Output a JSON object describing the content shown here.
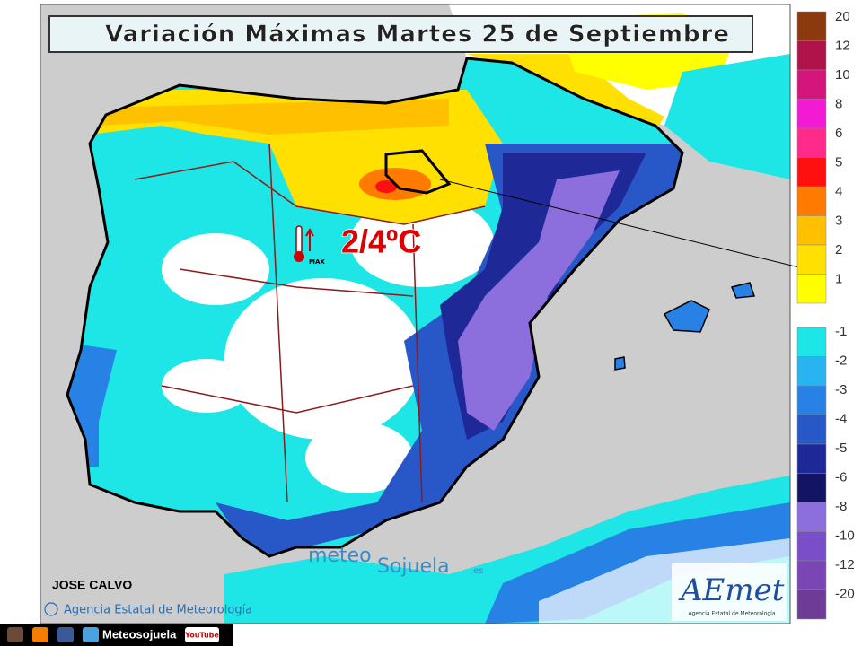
{
  "header": {
    "title": "Variación Máximas Martes 25 de Septiembre"
  },
  "legend": {
    "warm": [
      {
        "label": "20",
        "color": "#8b3a0f"
      },
      {
        "label": "12",
        "color": "#b0124a"
      },
      {
        "label": "10",
        "color": "#d4167c"
      },
      {
        "label": "8",
        "color": "#f21ad2"
      },
      {
        "label": "6",
        "color": "#ff2a8a"
      },
      {
        "label": "5",
        "color": "#ff1010"
      },
      {
        "label": "4",
        "color": "#ff7a00"
      },
      {
        "label": "3",
        "color": "#ffc000"
      },
      {
        "label": "2",
        "color": "#ffe000"
      },
      {
        "label": "1",
        "color": "#ffff00"
      }
    ],
    "cold": [
      {
        "label": "-1",
        "color": "#1ee6e6"
      },
      {
        "label": "-2",
        "color": "#28b4f0"
      },
      {
        "label": "-3",
        "color": "#2882e6"
      },
      {
        "label": "-4",
        "color": "#2858c8"
      },
      {
        "label": "-5",
        "color": "#1e2896"
      },
      {
        "label": "-6",
        "color": "#141464"
      },
      {
        "label": "-8",
        "color": "#8c6edc"
      },
      {
        "label": "-10",
        "color": "#7a4ec8"
      },
      {
        "label": "-12",
        "color": "#7a46b4"
      },
      {
        "label": "-20",
        "color": "#6e3c96"
      }
    ]
  },
  "annotation": {
    "value": "2/4ºC",
    "icon_label": "MAX"
  },
  "author": "JOSE CALVO",
  "copyright": "Agencia Estatal de Meteorología",
  "watermark": {
    "part1": "meteo",
    "part2": "Sojuela",
    "suffix": ".es"
  },
  "logo": {
    "name": "AEmet",
    "subtitle": "Agencia Estatal de Meteorología"
  },
  "footer": {
    "handle": "Meteosojuela",
    "youtube": "YouTube"
  }
}
